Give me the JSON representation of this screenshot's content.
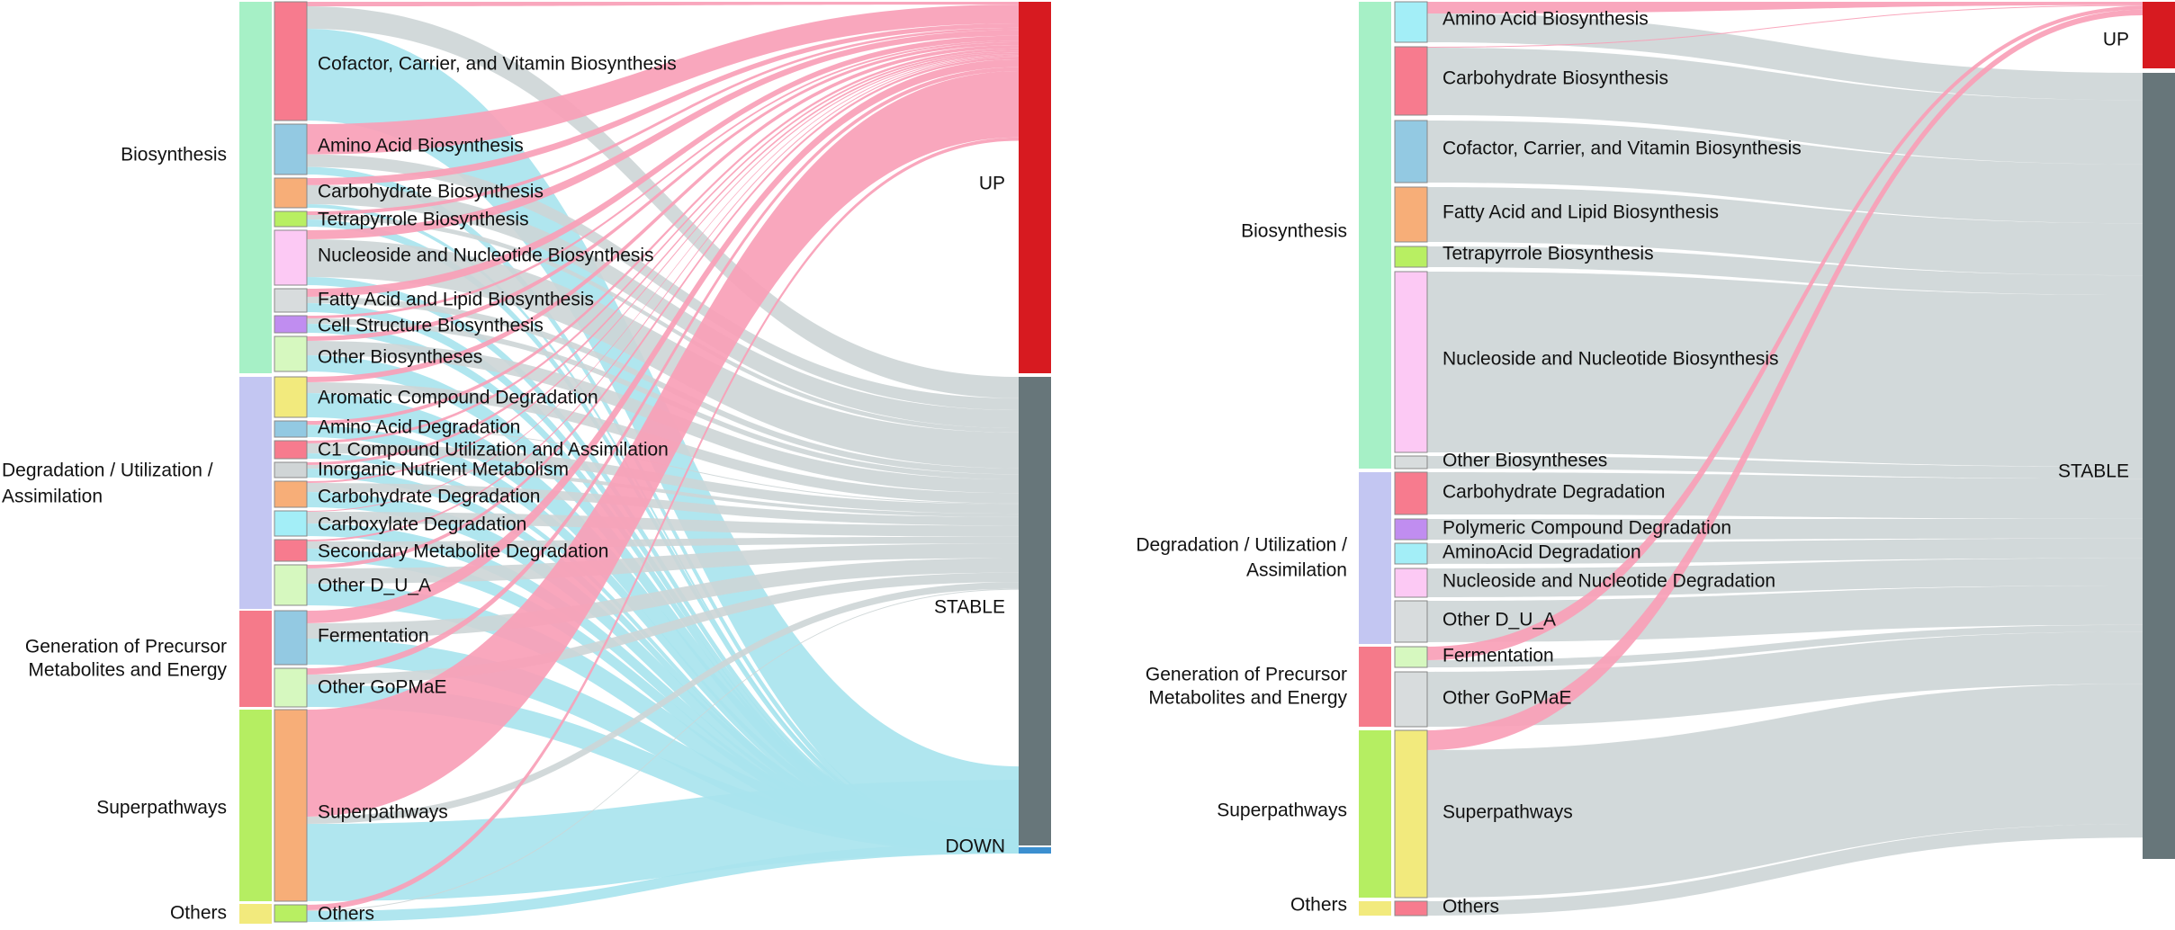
{
  "panels": [
    {
      "id": "left",
      "categories": [
        {
          "label": "Biosynthesis",
          "color": "#a6f0c6"
        },
        {
          "label": "Degradation / Utilization /\nAssimilation",
          "color": "#c3c6f2"
        },
        {
          "label": "Generation of Precursor\nMetabolites and Energy",
          "color": "#f57a8a"
        },
        {
          "label": "Superpathways",
          "color": "#b5ee62"
        },
        {
          "label": "Others",
          "color": "#f2ea7d"
        }
      ],
      "subcategories": [
        {
          "label": "Cofactor, Carrier, and Vitamin Biosynthesis",
          "color": "#f77b8e"
        },
        {
          "label": "Amino Acid Biosynthesis",
          "color": "#93c9e2"
        },
        {
          "label": "Carbohydrate Biosynthesis",
          "color": "#f7ae78"
        },
        {
          "label": "Tetrapyrrole Biosynthesis",
          "color": "#b8ef62"
        },
        {
          "label": "Nucleoside and Nucleotide Biosynthesis",
          "color": "#fcc9f4"
        },
        {
          "label": "Fatty Acid and Lipid Biosynthesis",
          "color": "#d8dcdd"
        },
        {
          "label": "Cell Structure Biosynthesis",
          "color": "#c08df0"
        },
        {
          "label": "Other Biosyntheses",
          "color": "#d6f8bf"
        },
        {
          "label": "Aromatic Compound Degradation",
          "color": "#f2ea7d"
        },
        {
          "label": "Amino Acid Degradation",
          "color": "#93c9e2"
        },
        {
          "label": "C1 Compound Utilization and Assimilation",
          "color": "#f77b8e"
        },
        {
          "label": "Inorganic Nutrient Metabolism",
          "color": "#d0d5d6"
        },
        {
          "label": "Carbohydrate Degradation",
          "color": "#f7ae78"
        },
        {
          "label": "Carboxylate Degradation",
          "color": "#a3eef7"
        },
        {
          "label": "Secondary Metabolite Degradation",
          "color": "#f77b8e"
        },
        {
          "label": "Other D_U_A",
          "color": "#d6f8bf"
        },
        {
          "label": "Fermentation",
          "color": "#93c9e2"
        },
        {
          "label": "Other GoPMaE",
          "color": "#d6f8bf"
        },
        {
          "label": "Superpathways",
          "color": "#f7ae78"
        },
        {
          "label": "Others",
          "color": "#b8ef62"
        }
      ],
      "outcomes": [
        {
          "label": "UP",
          "color": "#d71a20"
        },
        {
          "label": "STABLE",
          "color": "#67767a"
        },
        {
          "label": "DOWN",
          "color": "#3b8fd0"
        }
      ]
    },
    {
      "id": "right",
      "categories": [
        {
          "label": "Biosynthesis",
          "color": "#a6f0c6"
        },
        {
          "label": "Degradation / Utilization /\nAssimilation",
          "color": "#c3c6f2"
        },
        {
          "label": "Generation of Precursor\nMetabolites and Energy",
          "color": "#f57a8a"
        },
        {
          "label": "Superpathways",
          "color": "#b5ee62"
        },
        {
          "label": "Others",
          "color": "#f2ea7d"
        }
      ],
      "subcategories": [
        {
          "label": "Amino Acid Biosynthesis",
          "color": "#a3eef7"
        },
        {
          "label": "Carbohydrate Biosynthesis",
          "color": "#f77b8e"
        },
        {
          "label": "Cofactor, Carrier, and Vitamin Biosynthesis",
          "color": "#93c9e2"
        },
        {
          "label": "Fatty Acid and Lipid Biosynthesis",
          "color": "#f7ae78"
        },
        {
          "label": "Tetrapyrrole Biosynthesis",
          "color": "#b8ef62"
        },
        {
          "label": "Nucleoside and Nucleotide Biosynthesis",
          "color": "#fcc9f4"
        },
        {
          "label": "Other Biosyntheses",
          "color": "#d8dcdd"
        },
        {
          "label": "Carbohydrate Degradation",
          "color": "#f77b8e"
        },
        {
          "label": "Polymeric Compound Degradation",
          "color": "#c08df0"
        },
        {
          "label": "AminoAcid Degradation",
          "color": "#a3eef7"
        },
        {
          "label": "Nucleoside and Nucleotide Degradation",
          "color": "#fcc9f4"
        },
        {
          "label": "Other D_U_A",
          "color": "#d8dcdd"
        },
        {
          "label": "Fermentation",
          "color": "#d6f8bf"
        },
        {
          "label": "Other GoPMaE",
          "color": "#d8dcdd"
        },
        {
          "label": "Superpathways",
          "color": "#f2ea7d"
        },
        {
          "label": "Others",
          "color": "#f77b8e"
        }
      ],
      "outcomes": [
        {
          "label": "UP",
          "color": "#d71a20"
        },
        {
          "label": "STABLE",
          "color": "#67767a"
        }
      ]
    }
  ],
  "link_colors": {
    "UP": "#f9a0b7",
    "STABLE": "#cdd5d6",
    "DOWN": "#a9e4ee"
  }
}
